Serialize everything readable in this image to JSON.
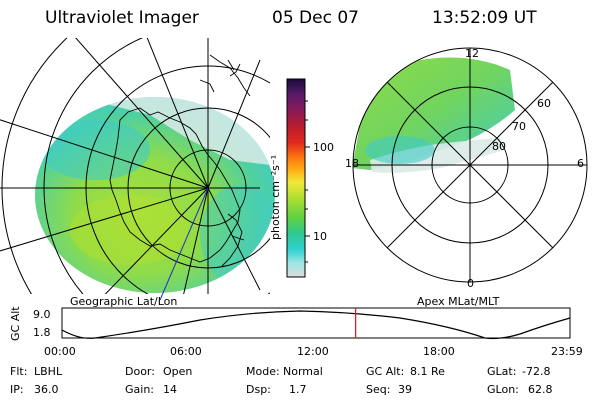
{
  "header": {
    "title": "Ultraviolet Imager",
    "date": "05 Dec 07",
    "time": "13:52:09 UT"
  },
  "left_panel": {
    "label": "Geographic Lat/Lon"
  },
  "right_panel": {
    "label": "Apex MLat/MLT",
    "mlt_labels": {
      "top": "12",
      "left": "18",
      "right": "6",
      "bottom": "0"
    },
    "lat_labels": [
      "60",
      "70",
      "80"
    ]
  },
  "colorbar": {
    "unit": "photon cm⁻²s⁻¹",
    "ticks": [
      "100",
      "10"
    ],
    "colors": [
      "#1a0a3a",
      "#5a1a6a",
      "#8a1a5a",
      "#b81c2c",
      "#e0281e",
      "#ff7a10",
      "#ffae14",
      "#f2e838",
      "#b0e030",
      "#60d040",
      "#30c890",
      "#30d0d0",
      "#9ee6e6",
      "#dcdcdc"
    ]
  },
  "timeline": {
    "ylabel": "GC Alt",
    "y_ticks": [
      "9.0",
      "1.8"
    ],
    "x_ticks": [
      "00:00",
      "06:00",
      "12:00",
      "18:00",
      "23:59"
    ],
    "current_fraction": 0.578
  },
  "info": {
    "row1": [
      {
        "label": "Flt:",
        "value": "LBHL"
      },
      {
        "label": "Door:",
        "value": "Open"
      },
      {
        "label": "Mode:",
        "value": "Normal"
      },
      {
        "label": "GC Alt:",
        "value": "8.1 Re"
      },
      {
        "label": "GLat:",
        "value": "-72.8"
      }
    ],
    "row2": [
      {
        "label": "IP:",
        "value": "36.0"
      },
      {
        "label": "Gain:",
        "value": "14"
      },
      {
        "label": "Dsp:",
        "value": "1.7"
      },
      {
        "label": "Seq:",
        "value": "39"
      },
      {
        "label": "GLon:",
        "value": "62.8"
      }
    ]
  }
}
